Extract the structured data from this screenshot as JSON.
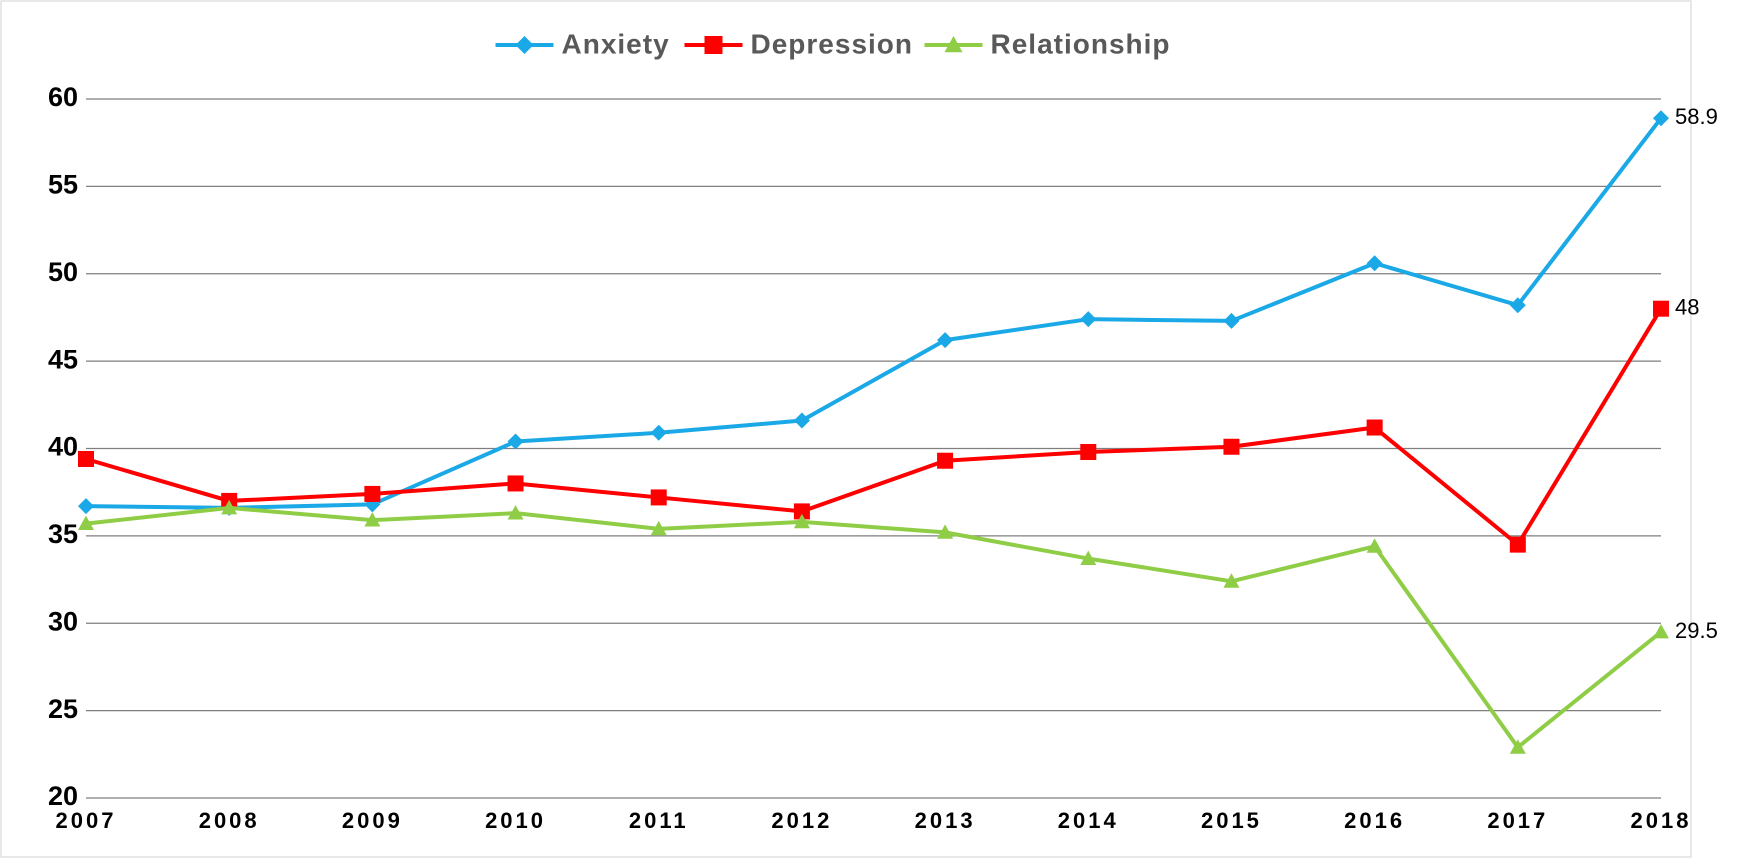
{
  "chart_data": {
    "type": "line",
    "categories": [
      "2007",
      "2008",
      "2009",
      "2010",
      "2011",
      "2012",
      "2013",
      "2014",
      "2015",
      "2016",
      "2017",
      "2018"
    ],
    "series": [
      {
        "name": "Anxiety",
        "color": "#1aa9e6",
        "marker": "diamond",
        "values": [
          36.7,
          36.6,
          36.8,
          40.4,
          40.9,
          41.6,
          46.2,
          47.4,
          47.3,
          50.6,
          48.2,
          58.9
        ]
      },
      {
        "name": "Depression",
        "color": "#ff0000",
        "marker": "square",
        "values": [
          39.4,
          37.0,
          37.4,
          38.0,
          37.2,
          36.4,
          39.3,
          39.8,
          40.1,
          41.2,
          34.5,
          48
        ]
      },
      {
        "name": "Relationship",
        "color": "#8fcd46",
        "marker": "triangle",
        "values": [
          35.7,
          36.6,
          35.9,
          36.3,
          35.4,
          35.8,
          35.2,
          33.7,
          32.4,
          34.4,
          22.9,
          29.5
        ]
      }
    ],
    "ylim": [
      20,
      60
    ],
    "yticks": [
      20,
      25,
      30,
      35,
      40,
      45,
      50,
      55,
      60
    ],
    "grid": true,
    "legend": "top",
    "data_labels": "last"
  }
}
